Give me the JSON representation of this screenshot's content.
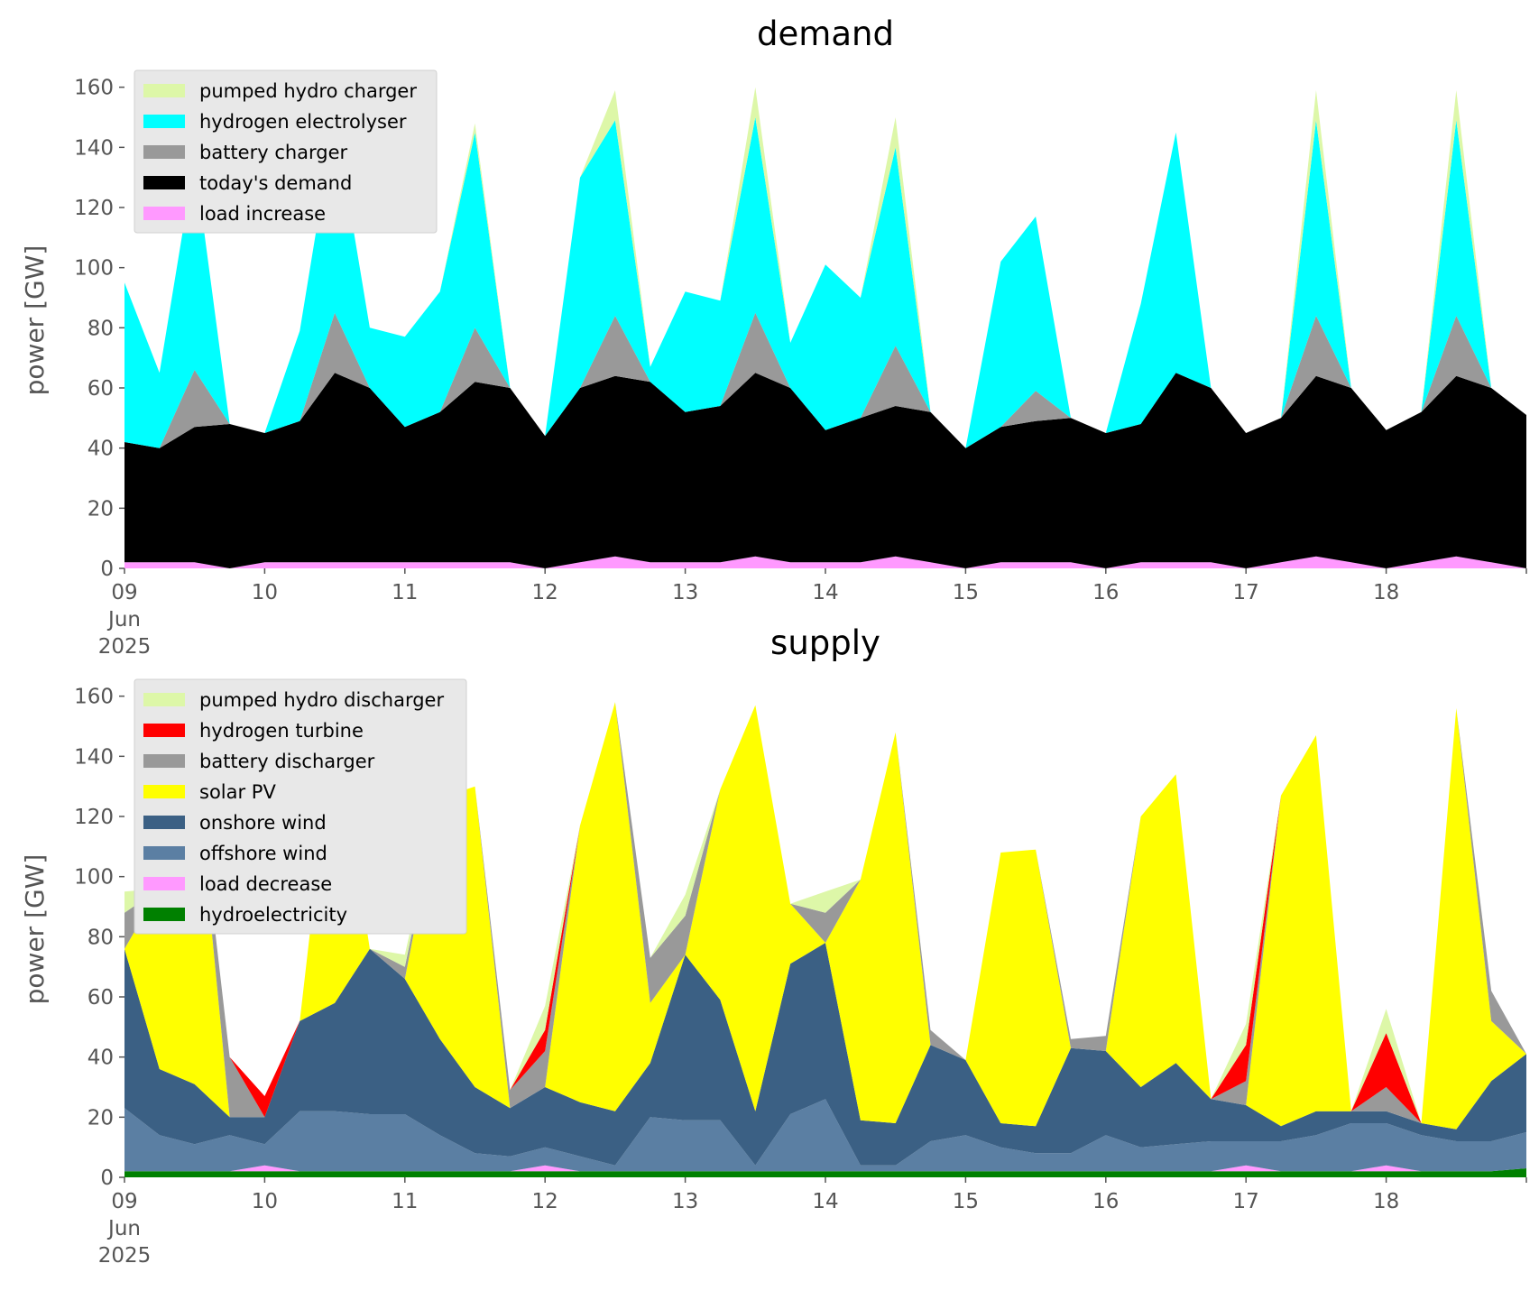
{
  "chart_data": [
    {
      "type": "area",
      "stacked": true,
      "title": "demand",
      "ylabel": "power [GW]",
      "ylim": [
        0,
        165
      ],
      "yticks": [
        0,
        20,
        40,
        60,
        80,
        100,
        120,
        140,
        160
      ],
      "xlim_days": [
        9,
        19
      ],
      "xticks": [
        "09",
        "10",
        "11",
        "12",
        "13",
        "14",
        "15",
        "16",
        "17",
        "18"
      ],
      "xtick_sub": [
        "Jun",
        "2025"
      ],
      "legend": "top-left",
      "grid": false,
      "x": [
        9.0,
        9.25,
        9.5,
        9.75,
        10.0,
        10.25,
        10.5,
        10.75,
        11.0,
        11.25,
        11.5,
        11.75,
        12.0,
        12.25,
        12.5,
        12.75,
        13.0,
        13.25,
        13.5,
        13.75,
        14.0,
        14.25,
        14.5,
        14.75,
        15.0,
        15.25,
        15.5,
        15.75,
        16.0,
        16.25,
        16.5,
        16.75,
        17.0,
        17.25,
        17.5,
        17.75,
        18.0,
        18.25,
        18.5,
        18.75,
        19.0
      ],
      "series": [
        {
          "name": "load increase",
          "color": "#ff99ff",
          "values": [
            2,
            2,
            2,
            0,
            2,
            2,
            2,
            2,
            2,
            2,
            2,
            2,
            0,
            2,
            4,
            2,
            2,
            2,
            4,
            2,
            2,
            2,
            4,
            2,
            0,
            2,
            2,
            2,
            0,
            2,
            2,
            2,
            0,
            2,
            4,
            2,
            0,
            2,
            4,
            2,
            0
          ]
        },
        {
          "name": "today's demand",
          "color": "#000000",
          "values": [
            40,
            38,
            45,
            48,
            43,
            47,
            63,
            58,
            45,
            50,
            60,
            58,
            44,
            58,
            60,
            60,
            50,
            52,
            61,
            58,
            44,
            48,
            50,
            50,
            40,
            45,
            47,
            48,
            45,
            46,
            63,
            58,
            45,
            48,
            60,
            58,
            46,
            50,
            60,
            58,
            51
          ]
        },
        {
          "name": "battery charger",
          "color": "#999999",
          "values": [
            0,
            0,
            19,
            0,
            0,
            0,
            20,
            0,
            0,
            0,
            18,
            0,
            0,
            0,
            20,
            0,
            0,
            0,
            20,
            0,
            0,
            0,
            20,
            0,
            0,
            0,
            10,
            0,
            0,
            0,
            0,
            0,
            0,
            0,
            20,
            0,
            0,
            0,
            20,
            0,
            0
          ]
        },
        {
          "name": "hydrogen electrolyser",
          "color": "#00ffff",
          "values": [
            53,
            25,
            70,
            0,
            0,
            30,
            65,
            20,
            30,
            40,
            65,
            0,
            0,
            70,
            65,
            5,
            40,
            35,
            65,
            15,
            55,
            40,
            66,
            0,
            0,
            55,
            58,
            0,
            0,
            40,
            80,
            0,
            0,
            0,
            65,
            0,
            0,
            0,
            65,
            0,
            0
          ]
        },
        {
          "name": "hydrogen electrolyser top",
          "legend": false,
          "color": "#00ffff",
          "values": [
            0,
            0,
            0,
            0,
            0,
            0,
            0,
            0,
            0,
            0,
            0,
            0,
            0,
            0,
            0,
            0,
            0,
            0,
            0,
            0,
            0,
            0,
            0,
            0,
            0,
            0,
            0,
            0,
            0,
            0,
            0,
            0,
            0,
            0,
            0,
            0,
            0,
            0,
            0,
            0,
            0
          ]
        },
        {
          "name": "pumped hydro charger",
          "color": "#ddf7a8",
          "values": [
            0,
            0,
            0,
            0,
            0,
            0,
            0,
            0,
            0,
            0,
            3,
            0,
            0,
            0,
            10,
            0,
            0,
            0,
            10,
            0,
            0,
            0,
            10,
            0,
            0,
            0,
            0,
            0,
            0,
            0,
            0,
            0,
            0,
            0,
            10,
            0,
            0,
            0,
            10,
            0,
            0
          ]
        }
      ],
      "legend_order": [
        "pumped hydro charger",
        "hydrogen electrolyser",
        "battery charger",
        "today's demand",
        "load increase"
      ]
    },
    {
      "type": "area",
      "stacked": true,
      "title": "supply",
      "ylabel": "power [GW]",
      "ylim": [
        0,
        165
      ],
      "yticks": [
        0,
        20,
        40,
        60,
        80,
        100,
        120,
        140,
        160
      ],
      "xlim_days": [
        9,
        19
      ],
      "xticks": [
        "09",
        "10",
        "11",
        "12",
        "13",
        "14",
        "15",
        "16",
        "17",
        "18"
      ],
      "xtick_sub": [
        "Jun",
        "2025"
      ],
      "legend": "top-left",
      "grid": false,
      "x": [
        9.0,
        9.25,
        9.5,
        9.75,
        10.0,
        10.25,
        10.5,
        10.75,
        11.0,
        11.25,
        11.5,
        11.75,
        12.0,
        12.25,
        12.5,
        12.75,
        13.0,
        13.25,
        13.5,
        13.75,
        14.0,
        14.25,
        14.5,
        14.75,
        15.0,
        15.25,
        15.5,
        15.75,
        16.0,
        16.25,
        16.5,
        16.75,
        17.0,
        17.25,
        17.5,
        17.75,
        18.0,
        18.25,
        18.5,
        18.75,
        19.0
      ],
      "series": [
        {
          "name": "hydroelectricity",
          "color": "#008000",
          "values": [
            2,
            2,
            2,
            2,
            2,
            2,
            2,
            2,
            2,
            2,
            2,
            2,
            2,
            2,
            2,
            2,
            2,
            2,
            2,
            2,
            2,
            2,
            2,
            2,
            2,
            2,
            2,
            2,
            2,
            2,
            2,
            2,
            2,
            2,
            2,
            2,
            2,
            2,
            2,
            2,
            3
          ]
        },
        {
          "name": "load decrease",
          "color": "#ff99ff",
          "values": [
            0,
            0,
            0,
            0,
            2,
            0,
            0,
            0,
            0,
            0,
            0,
            0,
            2,
            0,
            0,
            0,
            0,
            0,
            0,
            0,
            0,
            0,
            0,
            0,
            0,
            0,
            0,
            0,
            0,
            0,
            0,
            0,
            2,
            0,
            0,
            0,
            2,
            0,
            0,
            0,
            0
          ]
        },
        {
          "name": "offshore wind",
          "color": "#5b7fa3",
          "values": [
            21,
            12,
            9,
            12,
            7,
            20,
            20,
            19,
            19,
            12,
            6,
            5,
            6,
            5,
            2,
            18,
            17,
            17,
            2,
            19,
            24,
            2,
            2,
            10,
            12,
            8,
            6,
            6,
            12,
            8,
            9,
            10,
            8,
            10,
            12,
            16,
            14,
            12,
            10,
            10,
            12
          ]
        },
        {
          "name": "onshore wind",
          "color": "#3b6084",
          "values": [
            53,
            22,
            20,
            6,
            9,
            30,
            36,
            55,
            45,
            32,
            22,
            16,
            20,
            18,
            18,
            18,
            55,
            40,
            18,
            50,
            52,
            15,
            14,
            32,
            25,
            8,
            9,
            35,
            28,
            20,
            27,
            14,
            12,
            5,
            8,
            4,
            4,
            4,
            4,
            20,
            26
          ]
        },
        {
          "name": "solar PV",
          "color": "#ffff00",
          "values": [
            0,
            60,
            110,
            0,
            0,
            0,
            95,
            0,
            0,
            80,
            100,
            0,
            0,
            92,
            136,
            20,
            0,
            70,
            135,
            20,
            0,
            80,
            130,
            0,
            0,
            90,
            92,
            0,
            0,
            90,
            96,
            0,
            0,
            110,
            125,
            0,
            0,
            0,
            140,
            20,
            0
          ]
        },
        {
          "name": "battery discharger",
          "color": "#999999",
          "values": [
            12,
            0,
            0,
            20,
            0,
            0,
            0,
            0,
            4,
            0,
            0,
            6,
            12,
            0,
            0,
            15,
            13,
            0,
            0,
            0,
            10,
            0,
            0,
            5,
            0,
            0,
            0,
            3,
            5,
            0,
            0,
            0,
            8,
            0,
            0,
            0,
            8,
            0,
            0,
            10,
            0
          ]
        },
        {
          "name": "hydrogen turbine",
          "color": "#ff0000",
          "values": [
            0,
            0,
            0,
            0,
            7,
            0,
            0,
            0,
            0,
            0,
            0,
            0,
            7,
            0,
            0,
            0,
            0,
            0,
            0,
            0,
            0,
            0,
            0,
            0,
            0,
            0,
            0,
            0,
            0,
            0,
            0,
            0,
            12,
            0,
            0,
            0,
            18,
            0,
            0,
            0,
            0
          ]
        },
        {
          "name": "pumped hydro discharger",
          "color": "#ddf7a8",
          "values": [
            7,
            0,
            0,
            0,
            0,
            0,
            0,
            0,
            4,
            0,
            0,
            0,
            8,
            0,
            0,
            0,
            7,
            0,
            0,
            0,
            7,
            0,
            0,
            0,
            0,
            0,
            0,
            0,
            0,
            0,
            0,
            0,
            7,
            0,
            0,
            0,
            8,
            0,
            0,
            0,
            0
          ]
        }
      ],
      "legend_order": [
        "pumped hydro discharger",
        "hydrogen turbine",
        "battery discharger",
        "solar PV",
        "onshore wind",
        "offshore wind",
        "load decrease",
        "hydroelectricity"
      ]
    }
  ]
}
